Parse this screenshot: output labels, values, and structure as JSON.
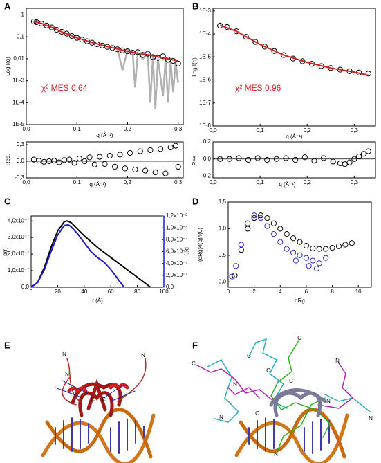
{
  "chart_data": [
    {
      "type": "scatter",
      "panel": "A",
      "log_y": true,
      "xlabel": "q (Å⁻¹)",
      "ylabel": "Log I(q)",
      "annotation": "χ² MES 0.64",
      "xlim": [
        0,
        0.31
      ],
      "ylim": [
        1e-05,
        2
      ],
      "xticks": [
        {
          "value": 0,
          "label": "0,0"
        },
        {
          "value": 0.1,
          "label": "0,1"
        },
        {
          "value": 0.2,
          "label": "0,2"
        },
        {
          "value": 0.3,
          "label": "0,3"
        }
      ],
      "yticks": [
        1,
        {
          "value": 0.1,
          "label": "0,1"
        },
        {
          "value": 0.01,
          "label": "0,01"
        },
        {
          "value": 0.001,
          "label": "1E-3"
        },
        {
          "value": 0.0001,
          "label": "1E-4"
        },
        {
          "value": 1e-05,
          "label": "1E-5"
        }
      ],
      "series": [
        {
          "mode": "line",
          "color": "#b0b0b0",
          "x": [
            0.18,
            0.19,
            0.2,
            0.21,
            0.215,
            0.22,
            0.23,
            0.24,
            0.245,
            0.25,
            0.255,
            0.26,
            0.27,
            0.275,
            0.28,
            0.285,
            0.29,
            0.295,
            0.3
          ],
          "values": [
            0.03,
            0.003,
            0.025,
            0.02,
            0.0005,
            0.018,
            0.01,
            0.015,
            0.0001,
            0.012,
            5e-05,
            0.01,
            0.0002,
            0.009,
            0.0001,
            0.008,
            0.0003,
            0.007,
            0.0008
          ]
        },
        {
          "mode": "markers",
          "color": "#000000",
          "x": [
            0.015,
            0.02,
            0.03,
            0.04,
            0.05,
            0.06,
            0.07,
            0.08,
            0.09,
            0.1,
            0.11,
            0.12,
            0.13,
            0.14,
            0.15,
            0.16,
            0.17,
            0.18,
            0.19,
            0.2,
            0.21,
            0.22,
            0.23,
            0.24,
            0.25,
            0.26,
            0.27,
            0.28,
            0.29,
            0.3
          ],
          "values": [
            0.5,
            0.47,
            0.4,
            0.33,
            0.27,
            0.21,
            0.17,
            0.14,
            0.11,
            0.09,
            0.075,
            0.063,
            0.054,
            0.046,
            0.04,
            0.035,
            0.031,
            0.027,
            0.024,
            0.022,
            0.019,
            0.02,
            0.015,
            0.017,
            0.012,
            0.011,
            0.013,
            0.009,
            0.008,
            0.006
          ]
        },
        {
          "mode": "line",
          "color": "#d42020",
          "x": [
            0.015,
            0.03,
            0.05,
            0.07,
            0.1,
            0.13,
            0.16,
            0.2,
            0.24,
            0.3
          ],
          "values": [
            0.5,
            0.41,
            0.27,
            0.17,
            0.09,
            0.055,
            0.036,
            0.022,
            0.015,
            0.008
          ]
        }
      ]
    },
    {
      "type": "scatter",
      "xlabel": "q (Å⁻¹)",
      "ylabel": "Res.",
      "hline": 0,
      "xlim": [
        0,
        0.31
      ],
      "ylim": [
        -0.3,
        0.35
      ],
      "xticks": [
        {
          "value": 0,
          "label": "0,0"
        },
        {
          "value": 0.1,
          "label": "0,1"
        },
        {
          "value": 0.2,
          "label": "0,2"
        },
        {
          "value": 0.3,
          "label": "0,3"
        }
      ],
      "yticks": [
        {
          "value": -0.3,
          "label": "-0,3"
        },
        {
          "value": 0,
          "label": "0,0"
        },
        {
          "value": 0.3,
          "label": "0,3"
        }
      ],
      "series": [
        {
          "mode": "markers",
          "color": "#000000",
          "x": [
            0.015,
            0.025,
            0.035,
            0.045,
            0.055,
            0.065,
            0.075,
            0.085,
            0.095,
            0.105,
            0.115,
            0.125,
            0.135,
            0.145,
            0.155,
            0.165,
            0.175,
            0.185,
            0.195,
            0.205,
            0.215,
            0.225,
            0.235,
            0.245,
            0.255,
            0.265,
            0.275,
            0.285,
            0.295,
            0.3
          ],
          "values": [
            0.03,
            0.01,
            -0.01,
            0.0,
            0.01,
            -0.02,
            0.02,
            0.03,
            -0.03,
            0.05,
            0.0,
            0.07,
            -0.06,
            0.08,
            -0.05,
            0.1,
            -0.1,
            0.12,
            -0.13,
            0.15,
            -0.15,
            0.18,
            -0.17,
            0.2,
            -0.2,
            0.22,
            -0.22,
            0.25,
            0.28,
            -0.1
          ]
        }
      ]
    },
    {
      "type": "scatter",
      "panel": "B",
      "log_y": true,
      "xlabel": "q (Å⁻¹)",
      "ylabel": "Log I(q)",
      "annotation": "χ² MES 0.96",
      "xlim": [
        0,
        0.345
      ],
      "ylim": [
        1e-08,
        0.0013
      ],
      "xticks": [
        {
          "value": 0,
          "label": "0,0"
        },
        {
          "value": 0.1,
          "label": "0,1"
        },
        {
          "value": 0.2,
          "label": "0,2"
        },
        {
          "value": 0.3,
          "label": "0,3"
        }
      ],
      "yticks": [
        {
          "value": 0.001,
          "label": "1E-3"
        },
        {
          "value": 0.0001,
          "label": "1E-4"
        },
        {
          "value": 1e-05,
          "label": "1E-5"
        },
        {
          "value": 1e-06,
          "label": "1E-6"
        },
        {
          "value": 1e-07,
          "label": "1E-7"
        },
        {
          "value": 1e-08,
          "label": "1E-8"
        }
      ],
      "series": [
        {
          "mode": "markers",
          "color": "#000000",
          "x": [
            0.015,
            0.03,
            0.05,
            0.07,
            0.09,
            0.11,
            0.13,
            0.15,
            0.17,
            0.19,
            0.21,
            0.23,
            0.25,
            0.27,
            0.29,
            0.31,
            0.33
          ],
          "values": [
            0.00023,
            0.0002,
            0.00013,
            7.5e-05,
            4.5e-05,
            2.8e-05,
            1.8e-05,
            1.2e-05,
            8.5e-06,
            6.5e-06,
            5e-06,
            4e-06,
            3.3e-06,
            2.8e-06,
            2.4e-06,
            2.1e-06,
            1.9e-06
          ]
        },
        {
          "mode": "line",
          "color": "#d42020",
          "x": [
            0.015,
            0.05,
            0.1,
            0.15,
            0.2,
            0.25,
            0.3,
            0.33
          ],
          "values": [
            0.00024,
            0.00013,
            3.5e-05,
            1.2e-05,
            5.8e-06,
            3.3e-06,
            2.2e-06,
            1.6e-06
          ]
        }
      ]
    },
    {
      "type": "scatter",
      "xlabel": "q (Å⁻¹)",
      "ylabel": "Res.",
      "hline": 0,
      "xlim": [
        0,
        0.345
      ],
      "ylim": [
        -0.22,
        0.2
      ],
      "xticks": [
        {
          "value": 0,
          "label": "0,0"
        },
        {
          "value": 0.1,
          "label": "0,1"
        },
        {
          "value": 0.2,
          "label": "0,2"
        },
        {
          "value": 0.3,
          "label": "0,3"
        }
      ],
      "yticks": [
        {
          "value": -0.2,
          "label": "-0,2"
        },
        {
          "value": 0,
          "label": "0,0"
        },
        {
          "value": 0.2,
          "label": "0,2"
        }
      ],
      "series": [
        {
          "mode": "markers",
          "color": "#000000",
          "x": [
            0.015,
            0.035,
            0.055,
            0.075,
            0.095,
            0.115,
            0.135,
            0.155,
            0.175,
            0.195,
            0.215,
            0.235,
            0.255,
            0.27,
            0.28,
            0.29,
            0.3,
            0.31,
            0.32,
            0.33
          ],
          "values": [
            0.0,
            0.0,
            0.01,
            -0.01,
            0.01,
            -0.01,
            0.0,
            0.01,
            -0.01,
            0.02,
            -0.02,
            0.01,
            -0.03,
            -0.05,
            -0.06,
            -0.04,
            0.0,
            0.03,
            0.06,
            0.09
          ]
        }
      ]
    },
    {
      "type": "line",
      "panel": "C",
      "xlabel": "r (Å)",
      "ylabel": "p(r)",
      "y2label": "p(r)",
      "xlim": [
        0,
        100
      ],
      "ylim": [
        0,
        4.3e-07
      ],
      "y2lim": [
        0,
        0.0012
      ],
      "xticks": [
        0,
        20,
        40,
        60,
        80,
        100
      ],
      "yticks": [
        {
          "value": 0,
          "label": "0,0"
        },
        {
          "value": 1e-07,
          "label": "1,0x10⁻⁷"
        },
        {
          "value": 2e-07,
          "label": "2,0x10⁻⁷"
        },
        {
          "value": 3e-07,
          "label": "3,0x10⁻⁷"
        },
        {
          "value": 4e-07,
          "label": "4,0x10⁻⁷"
        }
      ],
      "y2ticks": [
        {
          "value": 0,
          "label": "0,0"
        },
        {
          "value": 0.0002,
          "label": "2,0x10⁻⁴"
        },
        {
          "value": 0.0004,
          "label": "4,0x10⁻⁴"
        },
        {
          "value": 0.0006,
          "label": "6,0x10⁻⁴"
        },
        {
          "value": 0.0008,
          "label": "8,0x10⁻⁴"
        },
        {
          "value": 0.001,
          "label": "1,0x10⁻³"
        },
        {
          "value": 0.0012,
          "label": "1,2x10⁻³"
        }
      ],
      "series": [
        {
          "mode": "line",
          "color": "#000000",
          "x": [
            0,
            5,
            10,
            15,
            20,
            25,
            27,
            30,
            35,
            40,
            45,
            50,
            55,
            60,
            65,
            70,
            75,
            80,
            85,
            90
          ],
          "values": [
            0,
            3e-08,
            1.2e-07,
            2.4e-07,
            3.4e-07,
            3.95e-07,
            4e-07,
            3.9e-07,
            3.5e-07,
            3.1e-07,
            2.75e-07,
            2.4e-07,
            2.1e-07,
            1.8e-07,
            1.5e-07,
            1.2e-07,
            9e-08,
            6e-08,
            3e-08,
            0
          ]
        },
        {
          "mode": "line",
          "color": "#1a1ad0",
          "axis": "y2",
          "x": [
            0,
            5,
            10,
            15,
            20,
            25,
            28,
            30,
            35,
            40,
            45,
            50,
            55,
            60,
            65,
            70
          ],
          "values": [
            0,
            8e-05,
            0.0003,
            0.0006,
            0.00088,
            0.00104,
            0.00105,
            0.00102,
            0.0009,
            0.00075,
            0.0006,
            0.0005,
            0.00042,
            0.0003,
            0.00015,
            0
          ]
        }
      ]
    },
    {
      "type": "scatter",
      "panel": "D",
      "xlabel": "qRg",
      "ylabel": "(qRg)²I(q)/I(0)",
      "xlim": [
        0,
        11
      ],
      "ylim": [
        -0.1,
        1.5
      ],
      "xticks": [
        0,
        2,
        4,
        6,
        8,
        10
      ],
      "yticks": [
        {
          "value": 0,
          "label": "0,0"
        },
        {
          "value": 0.5,
          "label": "0,5"
        },
        {
          "value": 1,
          "label": "1,0"
        },
        {
          "value": 1.5,
          "label": "1,5"
        }
      ],
      "series": [
        {
          "mode": "markers",
          "color": "#000000",
          "x": [
            0.5,
            1,
            1.5,
            2,
            2.5,
            3,
            3.5,
            4,
            4.5,
            5,
            5.5,
            6,
            6.5,
            7,
            7.5,
            8,
            8.5,
            9,
            9.5
          ],
          "values": [
            0.12,
            0.6,
            1.0,
            1.2,
            1.25,
            1.2,
            1.1,
            1.0,
            0.9,
            0.82,
            0.75,
            0.68,
            0.63,
            0.62,
            0.62,
            0.64,
            0.67,
            0.7,
            0.73
          ]
        },
        {
          "mode": "markers",
          "color": "#2b2bd6",
          "x": [
            0.3,
            0.6,
            1,
            1.5,
            2,
            2.5,
            3,
            3.5,
            4,
            4.5,
            5,
            5.2,
            5.5,
            6,
            6.2,
            6.5,
            6.8,
            7,
            7.5
          ],
          "values": [
            0.1,
            0.3,
            0.7,
            1.1,
            1.25,
            1.2,
            1.05,
            0.9,
            0.75,
            0.62,
            0.55,
            0.4,
            0.5,
            0.45,
            0.3,
            0.4,
            0.25,
            0.35,
            0.45
          ]
        }
      ]
    }
  ],
  "structures": {
    "E": {
      "panel": "E",
      "termini": [
        "N",
        "N",
        "N",
        "C",
        "C"
      ]
    },
    "F": {
      "panel": "F",
      "termini": [
        "C",
        "C",
        "C",
        "C",
        "C",
        "N",
        "N",
        "N",
        "N",
        "C",
        "N",
        "N"
      ]
    }
  }
}
